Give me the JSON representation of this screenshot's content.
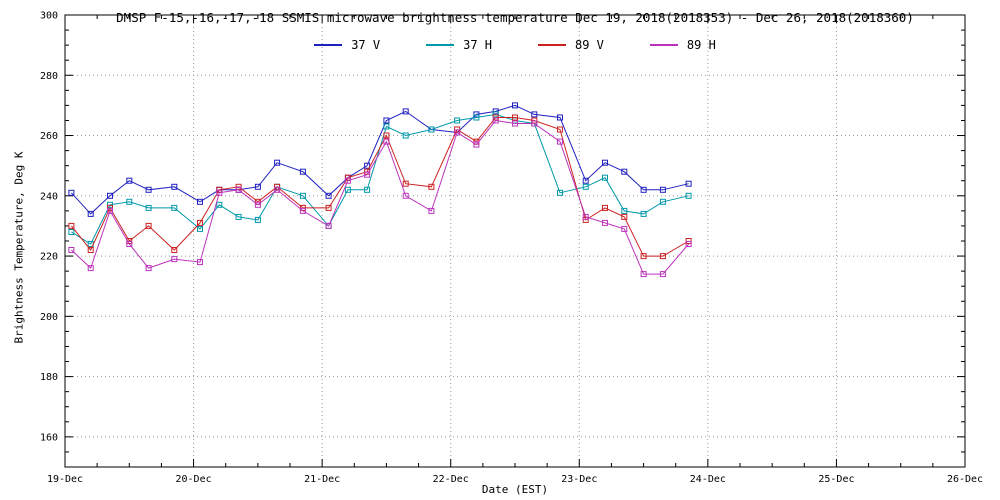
{
  "chart_data": {
    "type": "line",
    "title": "DMSP F-15,-16,-17,-18 SSMIS microwave brightness temperature Dec 19, 2018(2018353) - Dec 26, 2018(2018360)",
    "xlabel": "Date (EST)",
    "ylabel": "Brightness Temperature, Deg K",
    "xlim": [
      19,
      26
    ],
    "ylim": [
      150,
      300
    ],
    "xtick_values": [
      19,
      20,
      21,
      22,
      23,
      24,
      25,
      26
    ],
    "xtick_labels": [
      "19-Dec",
      "20-Dec",
      "21-Dec",
      "22-Dec",
      "23-Dec",
      "24-Dec",
      "25-Dec",
      "26-Dec"
    ],
    "ytick_values": [
      160,
      180,
      200,
      220,
      240,
      260,
      280,
      300
    ],
    "grid": "dotted",
    "legend_position": "top-center",
    "marker": "open-square",
    "x": [
      19.05,
      19.2,
      19.35,
      19.5,
      19.65,
      19.85,
      20.05,
      20.2,
      20.35,
      20.5,
      20.65,
      20.85,
      21.05,
      21.2,
      21.35,
      21.5,
      21.65,
      21.85,
      22.05,
      22.2,
      22.35,
      22.5,
      22.65,
      22.85,
      23.05,
      23.2,
      23.35,
      23.5,
      23.65,
      23.85
    ],
    "series": [
      {
        "name": "37 V",
        "color": "#2020c0",
        "values": [
          241,
          234,
          240,
          245,
          242,
          243,
          238,
          242,
          242,
          243,
          251,
          248,
          240,
          246,
          250,
          265,
          268,
          262,
          261,
          267,
          268,
          270,
          267,
          266,
          245,
          251,
          248,
          242,
          242,
          244
        ]
      },
      {
        "name": "37 H",
        "color": "#0099aa",
        "values": [
          228,
          224,
          237,
          238,
          236,
          236,
          229,
          237,
          233,
          232,
          243,
          240,
          230,
          242,
          242,
          263,
          260,
          262,
          265,
          266,
          267,
          265,
          264,
          241,
          243,
          246,
          235,
          234,
          238,
          240
        ]
      },
      {
        "name": "89 V",
        "color": "#cc2222",
        "values": [
          230,
          222,
          236,
          225,
          230,
          222,
          231,
          242,
          243,
          238,
          243,
          236,
          236,
          246,
          248,
          260,
          244,
          243,
          262,
          258,
          266,
          266,
          265,
          262,
          232,
          236,
          233,
          220,
          220,
          225
        ]
      },
      {
        "name": "89 H",
        "color": "#bb33bb",
        "values": [
          222,
          216,
          235,
          224,
          216,
          219,
          218,
          241,
          242,
          237,
          242,
          235,
          230,
          245,
          247,
          258,
          240,
          235,
          261,
          257,
          265,
          264,
          264,
          258,
          233,
          231,
          229,
          214,
          214,
          224
        ]
      }
    ]
  }
}
